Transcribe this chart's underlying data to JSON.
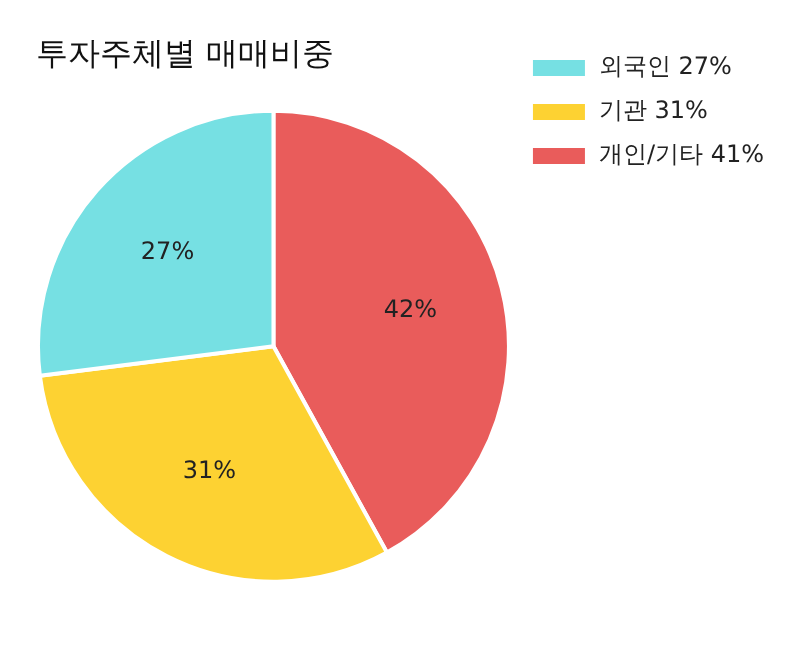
{
  "chart_data": {
    "type": "pie",
    "title": "투자주체별 매매비중",
    "categories": [
      "외국인 27%",
      "기관 31%",
      "개인/기타 41%"
    ],
    "values": [
      27,
      31,
      42
    ],
    "value_labels": [
      "27%",
      "31%",
      "42%"
    ],
    "colors": [
      "#76e0e3",
      "#fdd232",
      "#e95c5b"
    ],
    "legend": "top right"
  }
}
